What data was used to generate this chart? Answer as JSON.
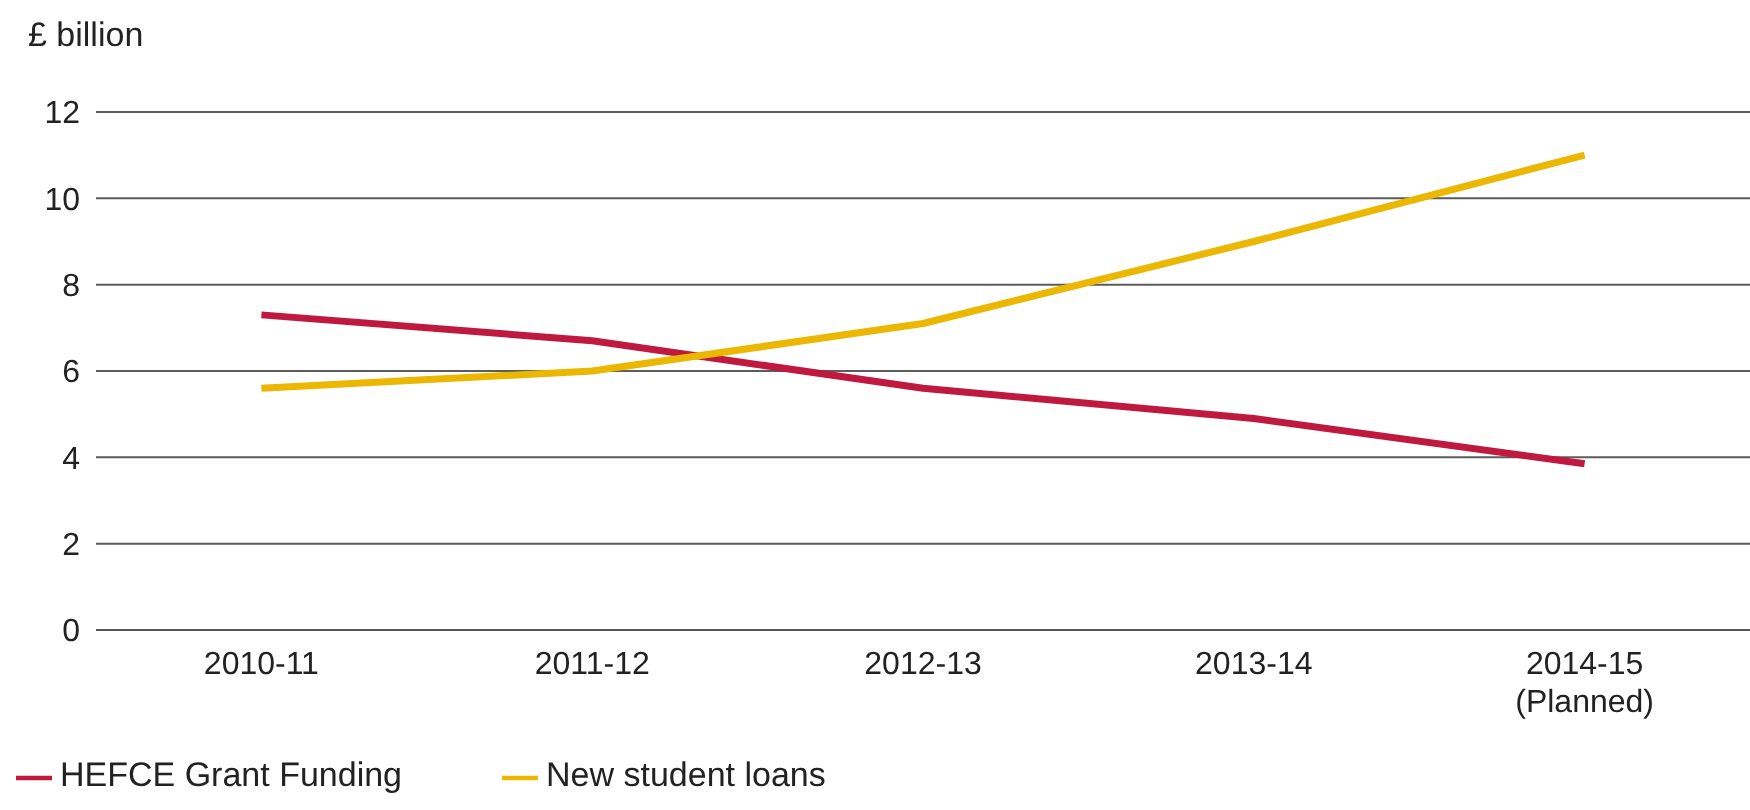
{
  "chart_data": {
    "type": "line",
    "ylabel": "£ billion",
    "categories": [
      "2010-11",
      "2011-12",
      "2012-13",
      "2013-14",
      "2014-15\n(Planned)"
    ],
    "series": [
      {
        "name": "HEFCE Grant Funding",
        "color": "#c0193f",
        "values": [
          7.3,
          6.7,
          5.6,
          4.9,
          3.85
        ]
      },
      {
        "name": "New student loans",
        "color": "#ebb700",
        "values": [
          5.6,
          6.0,
          7.1,
          9.0,
          11.0
        ]
      }
    ],
    "ylim": [
      0,
      12
    ],
    "yticks": [
      0,
      2,
      4,
      6,
      8,
      10,
      12
    ],
    "grid": "y",
    "legend": "bottom left",
    "marker": "none",
    "line_style": "solid"
  }
}
